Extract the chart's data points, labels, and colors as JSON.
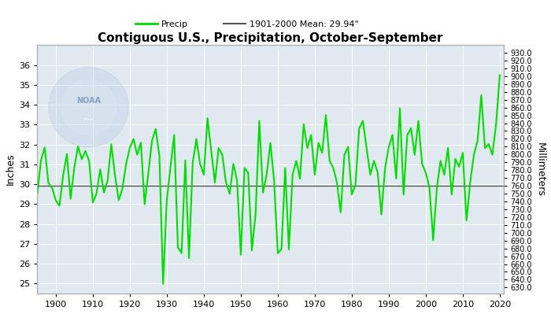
{
  "title": "Contiguous U.S., Precipitation, October-September",
  "ylabel_left": "Inches",
  "ylabel_right": "Millimeters",
  "mean_value": 29.94,
  "mean_label": "1901-2000 Mean: 29.94\"",
  "line_color": "#00DD00",
  "mean_color": "#555555",
  "background_color": "#ffffff",
  "plot_bg_color": "#e0e8f0",
  "grid_color": "#ffffff",
  "xlim": [
    1895,
    2021
  ],
  "ylim_inches": [
    24.5,
    37.0
  ],
  "xticks": [
    1900,
    1910,
    1920,
    1930,
    1940,
    1950,
    1960,
    1970,
    1980,
    1990,
    2000,
    2010,
    2020
  ],
  "yticks_inches": [
    25.0,
    26.0,
    27.0,
    28.0,
    29.0,
    30.0,
    31.0,
    32.0,
    33.0,
    34.0,
    35.0,
    36.0
  ],
  "yticks_mm": [
    630,
    640,
    650,
    660,
    670,
    680,
    690,
    700,
    710,
    720,
    730,
    740,
    750,
    760,
    770,
    780,
    790,
    800,
    810,
    820,
    830,
    840,
    850,
    860,
    870,
    880,
    890,
    900,
    910,
    920,
    930
  ],
  "years": [
    1895,
    1896,
    1897,
    1898,
    1899,
    1900,
    1901,
    1902,
    1903,
    1904,
    1905,
    1906,
    1907,
    1908,
    1909,
    1910,
    1911,
    1912,
    1913,
    1914,
    1915,
    1916,
    1917,
    1918,
    1919,
    1920,
    1921,
    1922,
    1923,
    1924,
    1925,
    1926,
    1927,
    1928,
    1929,
    1930,
    1931,
    1932,
    1933,
    1934,
    1935,
    1936,
    1937,
    1938,
    1939,
    1940,
    1941,
    1942,
    1943,
    1944,
    1945,
    1946,
    1947,
    1948,
    1949,
    1950,
    1951,
    1952,
    1953,
    1954,
    1955,
    1956,
    1957,
    1958,
    1959,
    1960,
    1961,
    1962,
    1963,
    1964,
    1965,
    1966,
    1967,
    1968,
    1969,
    1970,
    1971,
    1972,
    1973,
    1974,
    1975,
    1976,
    1977,
    1978,
    1979,
    1980,
    1981,
    1982,
    1983,
    1984,
    1985,
    1986,
    1987,
    1988,
    1989,
    1990,
    1991,
    1992,
    1993,
    1994,
    1995,
    1996,
    1997,
    1998,
    1999,
    2000,
    2001,
    2002,
    2003,
    2004,
    2005,
    2006,
    2007,
    2008,
    2009,
    2010,
    2011,
    2012,
    2013,
    2014,
    2015,
    2016,
    2017,
    2018,
    2019,
    2020
  ],
  "precip": [
    29.53,
    31.2,
    31.85,
    30.06,
    29.82,
    29.18,
    28.92,
    30.47,
    31.52,
    29.27,
    30.82,
    31.91,
    31.26,
    31.67,
    31.18,
    29.08,
    29.52,
    30.75,
    29.58,
    30.18,
    32.01,
    30.45,
    29.2,
    29.77,
    31.02,
    31.82,
    32.28,
    31.48,
    32.09,
    28.99,
    30.52,
    32.19,
    32.78,
    31.42,
    24.99,
    29.18,
    30.88,
    32.48,
    26.82,
    26.53,
    31.2,
    26.28,
    31.08,
    32.28,
    31.02,
    30.48,
    33.32,
    31.72,
    30.08,
    31.82,
    31.48,
    30.08,
    29.52,
    31.02,
    30.18,
    26.45,
    30.82,
    30.58,
    26.68,
    28.48,
    33.18,
    29.58,
    30.48,
    32.08,
    30.18,
    26.52,
    26.75,
    30.82,
    26.72,
    30.48,
    31.18,
    30.28,
    33.02,
    31.82,
    32.48,
    30.48,
    32.08,
    31.58,
    33.48,
    31.18,
    30.82,
    30.08,
    28.58,
    31.48,
    31.88,
    29.48,
    29.98,
    32.82,
    33.18,
    31.82,
    30.48,
    31.18,
    30.58,
    28.48,
    30.82,
    31.88,
    32.48,
    30.28,
    33.82,
    29.48,
    32.48,
    32.82,
    31.48,
    33.18,
    31.02,
    30.58,
    29.82,
    27.18,
    29.82,
    31.18,
    30.48,
    31.82,
    29.48,
    31.28,
    30.88,
    31.58,
    28.18,
    30.08,
    31.48,
    32.18,
    34.48,
    31.82,
    32.02,
    31.48,
    33.02,
    35.48
  ]
}
